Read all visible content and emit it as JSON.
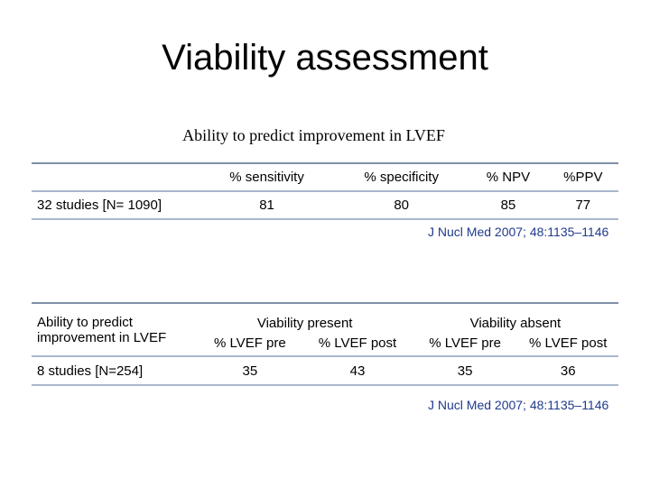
{
  "slide": {
    "title": "Viability assessment",
    "subtitle": "Ability to predict improvement in LVEF"
  },
  "table1": {
    "headers": [
      "",
      "% sensitivity",
      "% specificity",
      "% NPV",
      "%PPV"
    ],
    "row": {
      "label": "32 studies [N= 1090]",
      "values": [
        "81",
        "80",
        "85",
        "77"
      ]
    },
    "citation": "J Nucl Med 2007; 48:1135–1146"
  },
  "table2": {
    "row_label_header_line1": "Ability to predict",
    "row_label_header_line2": "improvement in LVEF",
    "group_headers": [
      "Viability present",
      "Viability absent"
    ],
    "sub_headers": [
      "% LVEF pre",
      "% LVEF post",
      "% LVEF pre",
      "% LVEF post"
    ],
    "row": {
      "label": "8 studies [N=254]",
      "values": [
        "35",
        "43",
        "35",
        "36"
      ]
    },
    "citation": "J Nucl Med 2007; 48:1135–1146"
  },
  "colors": {
    "rule_dark": "#7f8fa6",
    "rule_light": "#a9b7cc",
    "citation": "#1f3a8c"
  }
}
